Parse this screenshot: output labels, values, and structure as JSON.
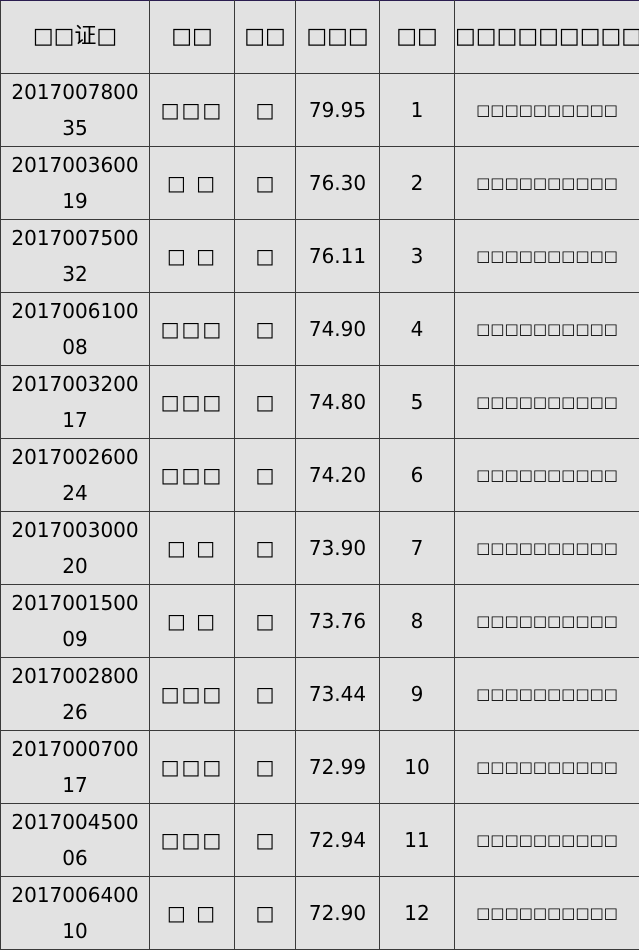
{
  "table": {
    "headers": [
      "□□证□",
      "□□",
      "□□",
      "□□□",
      "□□",
      "□□□□□□□□□□□"
    ],
    "rows": [
      {
        "cert": "201700780035",
        "name": "□□□",
        "gender": "□",
        "score": "79.95",
        "rank": "1",
        "note": "□□□□□□□□□□"
      },
      {
        "cert": "201700360019",
        "name": "□ □",
        "gender": "□",
        "score": "76.30",
        "rank": "2",
        "note": "□□□□□□□□□□"
      },
      {
        "cert": "201700750032",
        "name": "□ □",
        "gender": "□",
        "score": "76.11",
        "rank": "3",
        "note": "□□□□□□□□□□"
      },
      {
        "cert": "201700610008",
        "name": "□□□",
        "gender": "□",
        "score": "74.90",
        "rank": "4",
        "note": "□□□□□□□□□□"
      },
      {
        "cert": "201700320017",
        "name": "□□□",
        "gender": "□",
        "score": "74.80",
        "rank": "5",
        "note": "□□□□□□□□□□"
      },
      {
        "cert": "201700260024",
        "name": "□□□",
        "gender": "□",
        "score": "74.20",
        "rank": "6",
        "note": "□□□□□□□□□□"
      },
      {
        "cert": "201700300020",
        "name": "□ □",
        "gender": "□",
        "score": "73.90",
        "rank": "7",
        "note": "□□□□□□□□□□"
      },
      {
        "cert": "201700150009",
        "name": "□ □",
        "gender": "□",
        "score": "73.76",
        "rank": "8",
        "note": "□□□□□□□□□□"
      },
      {
        "cert": "201700280026",
        "name": "□□□",
        "gender": "□",
        "score": "73.44",
        "rank": "9",
        "note": "□□□□□□□□□□"
      },
      {
        "cert": "201700070017",
        "name": "□□□",
        "gender": "□",
        "score": "72.99",
        "rank": "10",
        "note": "□□□□□□□□□□"
      },
      {
        "cert": "201700450006",
        "name": "□□□",
        "gender": "□",
        "score": "72.94",
        "rank": "11",
        "note": "□□□□□□□□□□"
      },
      {
        "cert": "201700640010",
        "name": "□ □",
        "gender": "□",
        "score": "72.90",
        "rank": "12",
        "note": "□□□□□□□□□□"
      }
    ]
  }
}
